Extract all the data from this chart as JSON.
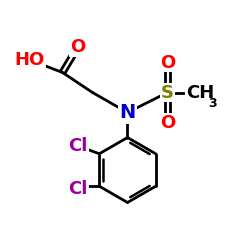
{
  "background": "#ffffff",
  "bond_color": "#000000",
  "bond_lw": 2.0,
  "colors": {
    "O": "#ff0000",
    "N": "#0000cc",
    "S": "#808000",
    "Cl": "#990099",
    "C": "#000000",
    "HO": "#ff0000"
  },
  "font_size_atom": 13,
  "font_size_subscript": 9
}
